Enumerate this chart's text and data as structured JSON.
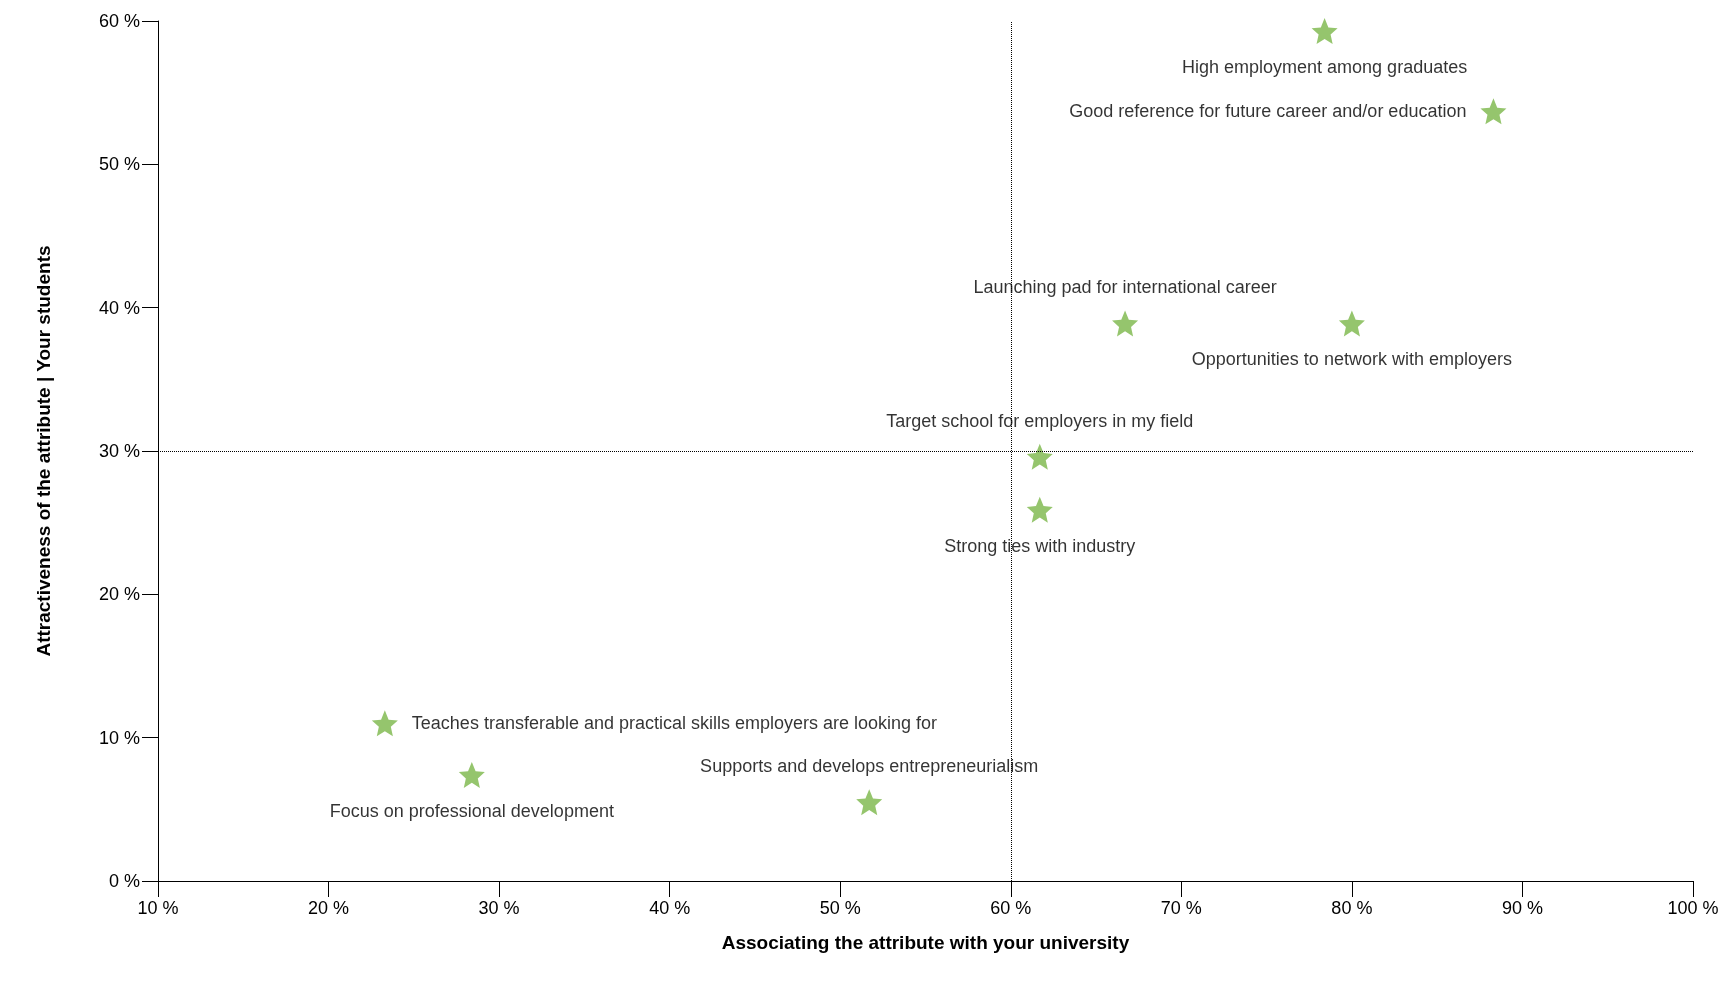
{
  "chart_data": {
    "type": "scatter",
    "xlabel": "Associating the attribute with your university",
    "ylabel": "Attractiveness of the attribute | Your students",
    "x": [
      78.4,
      88.3,
      66.7,
      80.0,
      61.7,
      61.7,
      23.3,
      28.4,
      51.7
    ],
    "values": [
      59.3,
      53.7,
      38.9,
      38.9,
      29.6,
      25.9,
      11.0,
      7.4,
      5.5
    ],
    "value_labels": [
      "High employment among graduates",
      "Good reference for future career and/or education",
      "Launching pad for international career",
      "Opportunities to network with employers",
      "Target school for employers in my field",
      "Strong ties with industry",
      "Teaches transferable and practical skills employers are looking for",
      "Focus on professional development",
      "Supports and develops entrepreneurialism"
    ],
    "color": "#7ab648",
    "marker": "star",
    "xlim": [
      10,
      100
    ],
    "xticks": [
      {
        "value": 10,
        "label": "10 %"
      },
      {
        "value": 20,
        "label": "20 %"
      },
      {
        "value": 30,
        "label": "30 %"
      },
      {
        "value": 40,
        "label": "40 %"
      },
      {
        "value": 50,
        "label": "50 %"
      },
      {
        "value": 60,
        "label": "60 %"
      },
      {
        "value": 70,
        "label": "70 %"
      },
      {
        "value": 80,
        "label": "80 %"
      },
      {
        "value": 90,
        "label": "90 %"
      },
      {
        "value": 100,
        "label": "100 %"
      }
    ],
    "ylim": [
      0,
      60
    ],
    "yticks": [
      {
        "value": 0,
        "label": "0 %"
      },
      {
        "value": 10,
        "label": "10 %"
      },
      {
        "value": 20,
        "label": "20 %"
      },
      {
        "value": 30,
        "label": "30 %"
      },
      {
        "value": 40,
        "label": "40 %"
      },
      {
        "value": 50,
        "label": "50 %"
      },
      {
        "value": 60,
        "label": "60 %"
      }
    ],
    "ref_lines": [
      {
        "axis": "x",
        "value": 60,
        "line_style": "dotted",
        "color": "#000000"
      },
      {
        "axis": "y",
        "value": 30,
        "line_style": "dotted",
        "color": "#000000"
      }
    ]
  }
}
